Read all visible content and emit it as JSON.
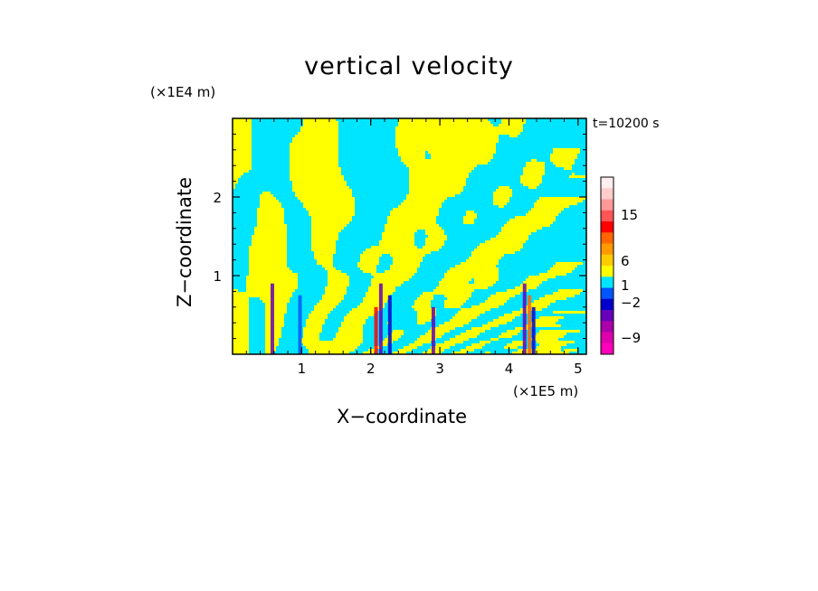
{
  "chart_data": {
    "type": "heatmap",
    "title": "vertical velocity",
    "xlabel": "X−coordinate",
    "ylabel": "Z−coordinate",
    "x_scale_label": "(×1E5 m)",
    "z_scale_label": "(×1E4 m)",
    "time_label": "t=10200 s",
    "xlim": [
      0,
      5.12
    ],
    "ylim": [
      0,
      3.0
    ],
    "x_ticks": [
      "1",
      "2",
      "3",
      "4",
      "5"
    ],
    "y_ticks": [
      "1",
      "2"
    ],
    "colorbar": {
      "colors": [
        "#ff00bb",
        "#dd00aa",
        "#aa00aa",
        "#6600bb",
        "#0000cc",
        "#0055ff",
        "#00e5ff",
        "#ffff00",
        "#ffcc00",
        "#ff9900",
        "#ff6600",
        "#ff0000",
        "#ff5555",
        "#ff9999",
        "#ffcccc",
        "#ffeeee"
      ],
      "labels": [
        "15",
        "6",
        "1",
        "−2",
        "−9"
      ],
      "label_values": [
        15,
        6,
        1,
        -2,
        -9
      ]
    },
    "legend_position": "right"
  }
}
